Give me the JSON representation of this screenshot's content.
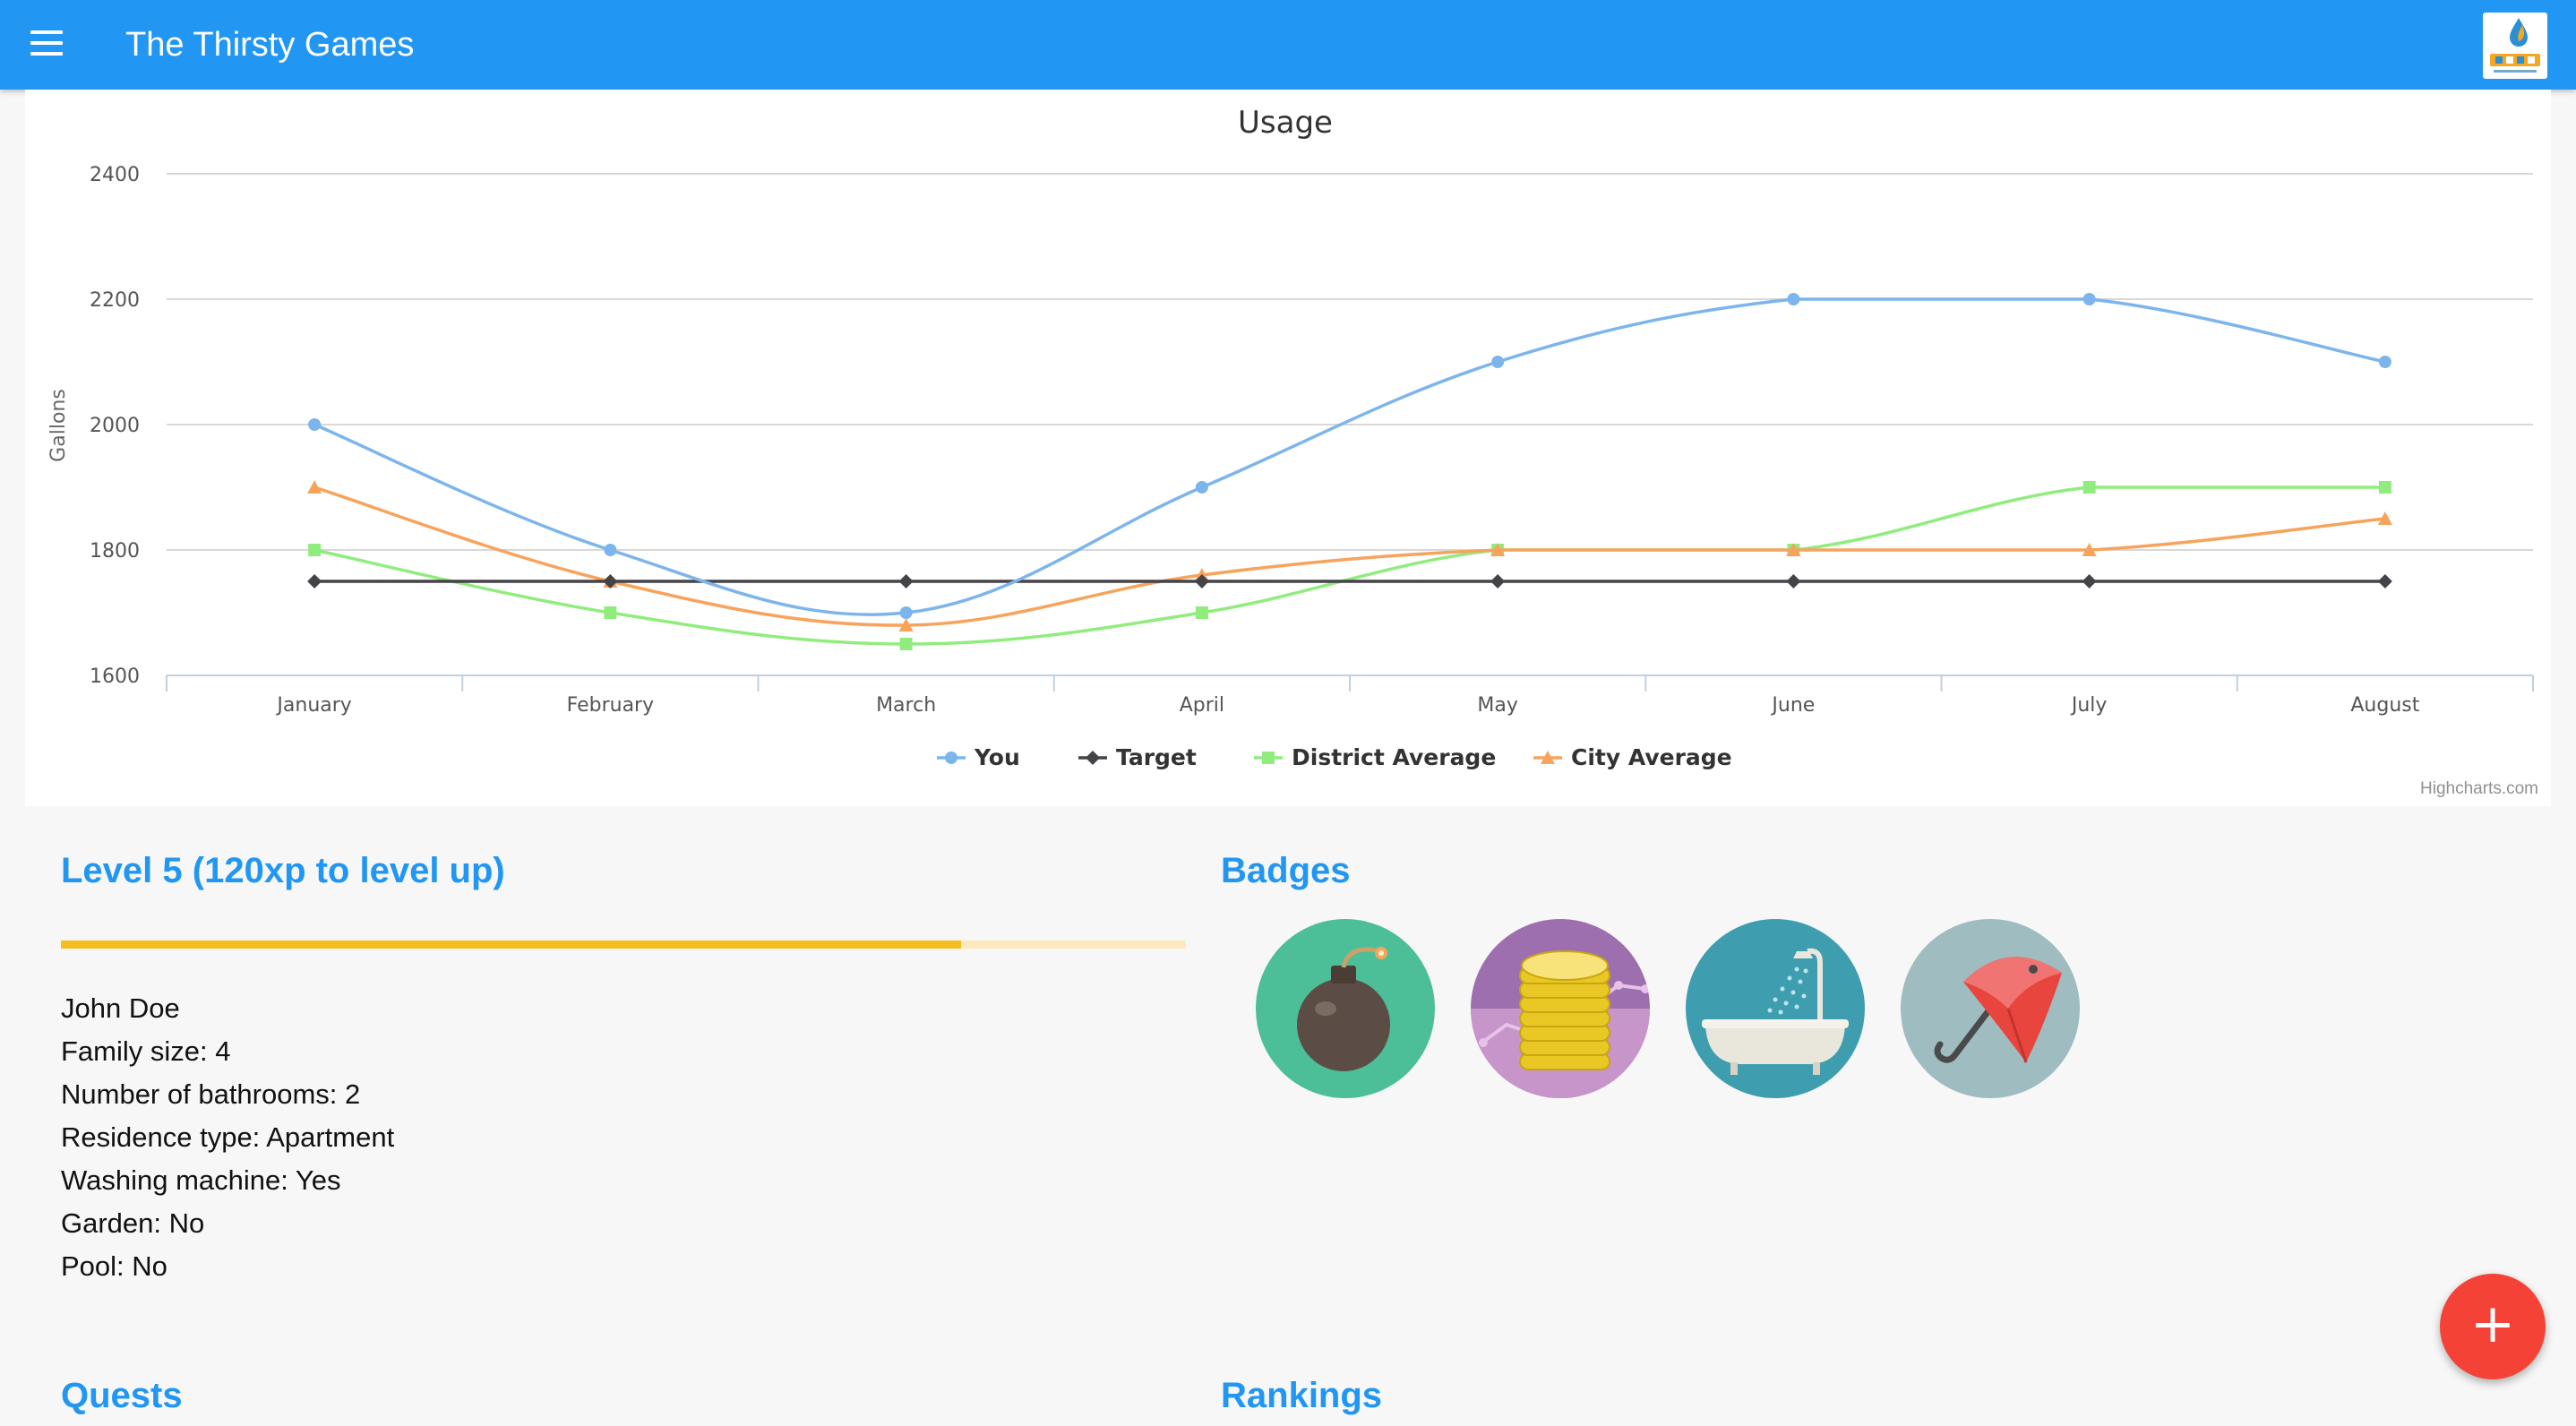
{
  "app": {
    "title": "The Thirsty Games",
    "logo_icon": "thirsty-games-2015-logo"
  },
  "chart_data": {
    "type": "line",
    "title": "Usage",
    "xlabel": "",
    "ylabel": "Gallons",
    "categories": [
      "January",
      "February",
      "March",
      "April",
      "May",
      "June",
      "July",
      "August"
    ],
    "ylim": [
      1600,
      2400
    ],
    "yticks": [
      1600,
      1800,
      2000,
      2200,
      2400
    ],
    "grid": true,
    "legend_position": "bottom-center",
    "series": [
      {
        "name": "You",
        "values": [
          2000,
          1800,
          1700,
          1900,
          2100,
          2200,
          2200,
          2100
        ],
        "color": "#7cb5ec",
        "marker": "circle"
      },
      {
        "name": "Target",
        "values": [
          1750,
          1750,
          1750,
          1750,
          1750,
          1750,
          1750,
          1750
        ],
        "color": "#434348",
        "marker": "diamond"
      },
      {
        "name": "District Average",
        "values": [
          1800,
          1700,
          1650,
          1700,
          1800,
          1800,
          1900,
          1900
        ],
        "color": "#90ed7d",
        "marker": "square"
      },
      {
        "name": "City Average",
        "values": [
          1900,
          1750,
          1680,
          1760,
          1800,
          1800,
          1800,
          1850
        ],
        "color": "#f7a35c",
        "marker": "triangle"
      }
    ],
    "credits": "Highcharts.com"
  },
  "level": {
    "title": "Level 5 (120xp to level up)",
    "progress": 0.8,
    "bar_color": "#f5bd1f",
    "track_color": "#ffe8bb"
  },
  "profile": {
    "name": "John Doe",
    "family_size": "Family size: 4",
    "bathrooms": "Number of bathrooms: 2",
    "residence": "Residence type: Apartment",
    "washing_machine": "Washing machine: Yes",
    "garden": "Garden: No",
    "pool": "Pool: No"
  },
  "badges": {
    "title": "Badges",
    "items": [
      {
        "icon": "bomb-icon",
        "color": "#4cbf98"
      },
      {
        "icon": "coin-stack-icon",
        "color": "#9d6fae"
      },
      {
        "icon": "bathtub-shower-icon",
        "color": "#3e9eb0"
      },
      {
        "icon": "umbrella-icon",
        "color": "#9fbcc0"
      }
    ]
  },
  "quests": {
    "title": "Quests"
  },
  "rankings": {
    "title": "Rankings"
  },
  "fab": {
    "label": "+"
  },
  "colors": {
    "primary": "#2196f3",
    "accent": "#f44336"
  }
}
